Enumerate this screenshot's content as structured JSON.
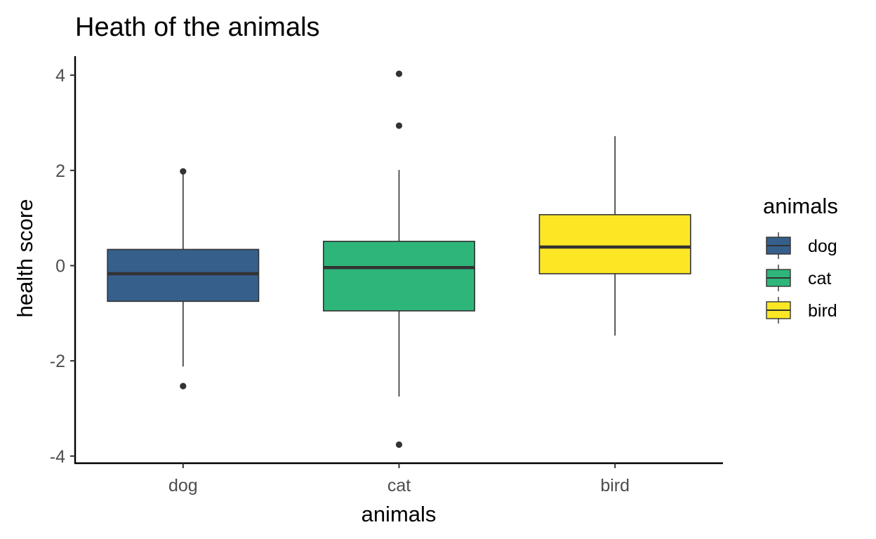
{
  "chart_data": {
    "type": "boxplot",
    "title": "Heath of the animals",
    "xlabel": "animals",
    "ylabel": "health score",
    "categories": [
      "dog",
      "cat",
      "bird"
    ],
    "ylim": [
      -4.15,
      4.4
    ],
    "yticks": [
      -4,
      -2,
      0,
      2,
      4
    ],
    "grid": false,
    "legend": {
      "title": "animals",
      "position": "right",
      "entries": [
        "dog",
        "cat",
        "bird"
      ]
    },
    "colors": {
      "dog": "#365f8c",
      "cat": "#2eb67a",
      "bird": "#fde725",
      "outline": "#333333"
    },
    "boxes": [
      {
        "name": "dog",
        "whisker_low": -2.12,
        "q1": -0.75,
        "median": -0.17,
        "q3": 0.34,
        "whisker_high": 1.97,
        "outliers": [
          1.98,
          -2.53
        ]
      },
      {
        "name": "cat",
        "whisker_low": -2.75,
        "q1": -0.95,
        "median": -0.04,
        "q3": 0.51,
        "whisker_high": 2.01,
        "outliers": [
          4.03,
          2.94,
          -3.76
        ]
      },
      {
        "name": "bird",
        "whisker_low": -1.47,
        "q1": -0.17,
        "median": 0.39,
        "q3": 1.07,
        "whisker_high": 2.72,
        "outliers": []
      }
    ]
  }
}
